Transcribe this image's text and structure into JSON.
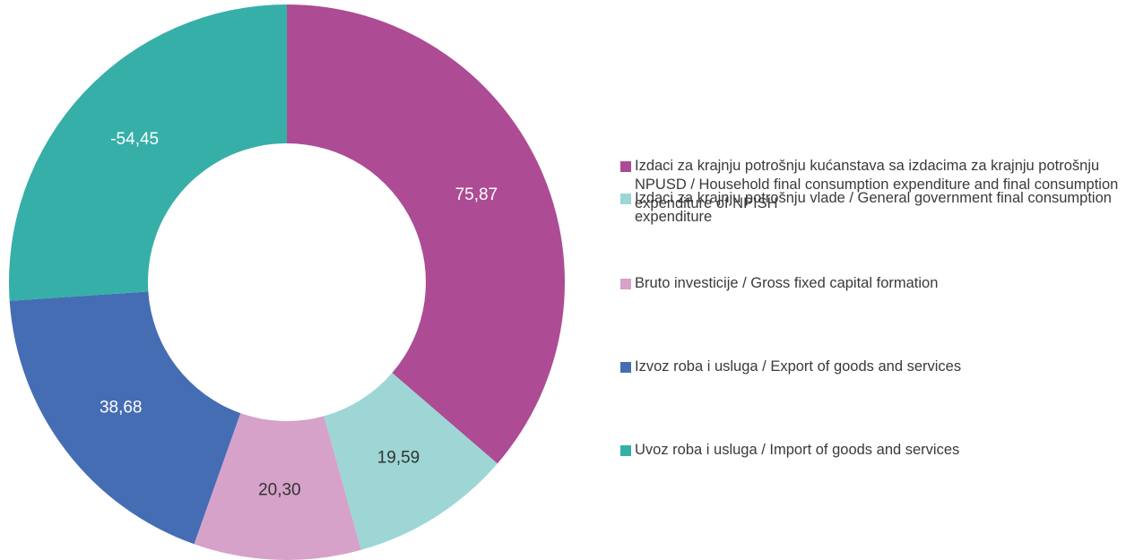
{
  "chart_data": {
    "type": "donut",
    "categories": [
      "Izdaci za krajnju potrošnju kućanstava sa izdacima za krajnju potrošnju NPUSD / Household final consumption expenditure and final consumption expenditure of NPISH",
      "Izdaci za krajnju potrošnju vlade / General government final consumption expenditure",
      "Bruto investicije / Gross fixed capital formation",
      "Izvoz roba i usluga / Export of goods and services",
      "Uvoz roba i usluga / Import of goods and services"
    ],
    "values": [
      75.87,
      19.59,
      20.3,
      38.68,
      -54.45
    ],
    "value_labels": [
      "75,87",
      "19,59",
      "20,30",
      "38,68",
      "-54,45"
    ],
    "colors": [
      "#ad4b94",
      "#9dd6d5",
      "#d6a2c9",
      "#456db4",
      "#36afa8"
    ],
    "legend": "right"
  }
}
